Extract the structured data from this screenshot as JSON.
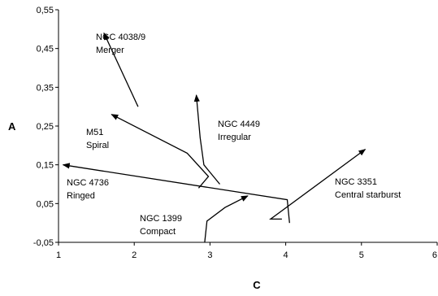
{
  "chart_data": {
    "type": "line",
    "title": "",
    "xlabel": "C",
    "ylabel": "A",
    "xlim": [
      1,
      6
    ],
    "ylim": [
      -0.05,
      0.55
    ],
    "grid": false,
    "legend": "none",
    "xticks": [
      "1",
      "2",
      "3",
      "4",
      "5",
      "6"
    ],
    "yticks": [
      "-0,05",
      "0,05",
      "0,15",
      "0,25",
      "0,35",
      "0,45",
      "0,55"
    ],
    "series": [
      {
        "key": "ngc4038",
        "label_lines": [
          "NGC 4038/9",
          "Merger"
        ],
        "points": [
          [
            2.05,
            0.3
          ],
          [
            1.6,
            0.49
          ]
        ]
      },
      {
        "key": "m51",
        "label_lines": [
          "M51",
          "Spiral"
        ],
        "points": [
          [
            2.85,
            0.09
          ],
          [
            2.98,
            0.12
          ],
          [
            2.7,
            0.18
          ],
          [
            1.7,
            0.28
          ]
        ]
      },
      {
        "key": "ngc4449",
        "label_lines": [
          "NGC 4449",
          "Irregular"
        ],
        "points": [
          [
            3.13,
            0.1
          ],
          [
            2.92,
            0.15
          ],
          [
            2.87,
            0.22
          ],
          [
            2.82,
            0.33
          ]
        ]
      },
      {
        "key": "ngc4736",
        "label_lines": [
          "NGC 4736",
          "Ringed"
        ],
        "points": [
          [
            4.05,
            0.0
          ],
          [
            4.02,
            0.06
          ],
          [
            1.06,
            0.15
          ]
        ]
      },
      {
        "key": "ngc1399",
        "label_lines": [
          "NGC 1399",
          "Compact"
        ],
        "points": [
          [
            2.93,
            -0.05
          ],
          [
            2.96,
            0.005
          ],
          [
            3.2,
            0.04
          ],
          [
            3.5,
            0.07
          ]
        ]
      },
      {
        "key": "ngc3351",
        "label_lines": [
          "NGC 3351",
          "Central starburst"
        ],
        "points": [
          [
            3.95,
            0.01
          ],
          [
            3.8,
            0.01
          ],
          [
            5.05,
            0.19
          ]
        ]
      }
    ]
  }
}
